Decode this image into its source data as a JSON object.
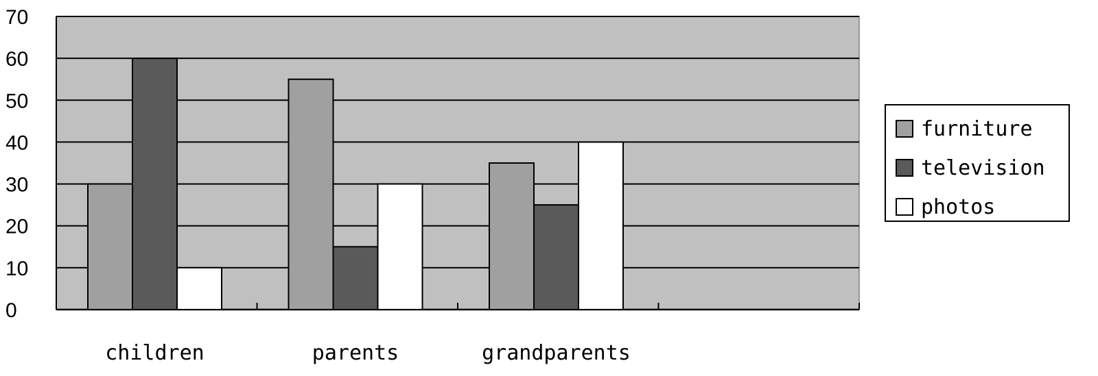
{
  "chart_data": {
    "type": "bar",
    "categories": [
      "children",
      "parents",
      "grandparents",
      ""
    ],
    "series": [
      {
        "name": "furniture",
        "values": [
          30,
          55,
          35,
          null
        ],
        "color": "#a0a0a0"
      },
      {
        "name": "television",
        "values": [
          60,
          15,
          25,
          null
        ],
        "color": "#5a5a5a"
      },
      {
        "name": "photos",
        "values": [
          10,
          30,
          40,
          null
        ],
        "color": "#ffffff"
      }
    ],
    "title": "",
    "xlabel": "",
    "ylabel": "",
    "ylim": [
      0,
      70
    ],
    "yticks": [
      0,
      10,
      20,
      30,
      40,
      50,
      60,
      70
    ],
    "grid": true,
    "plot_background": "#c0c0c0",
    "legend": "right"
  }
}
